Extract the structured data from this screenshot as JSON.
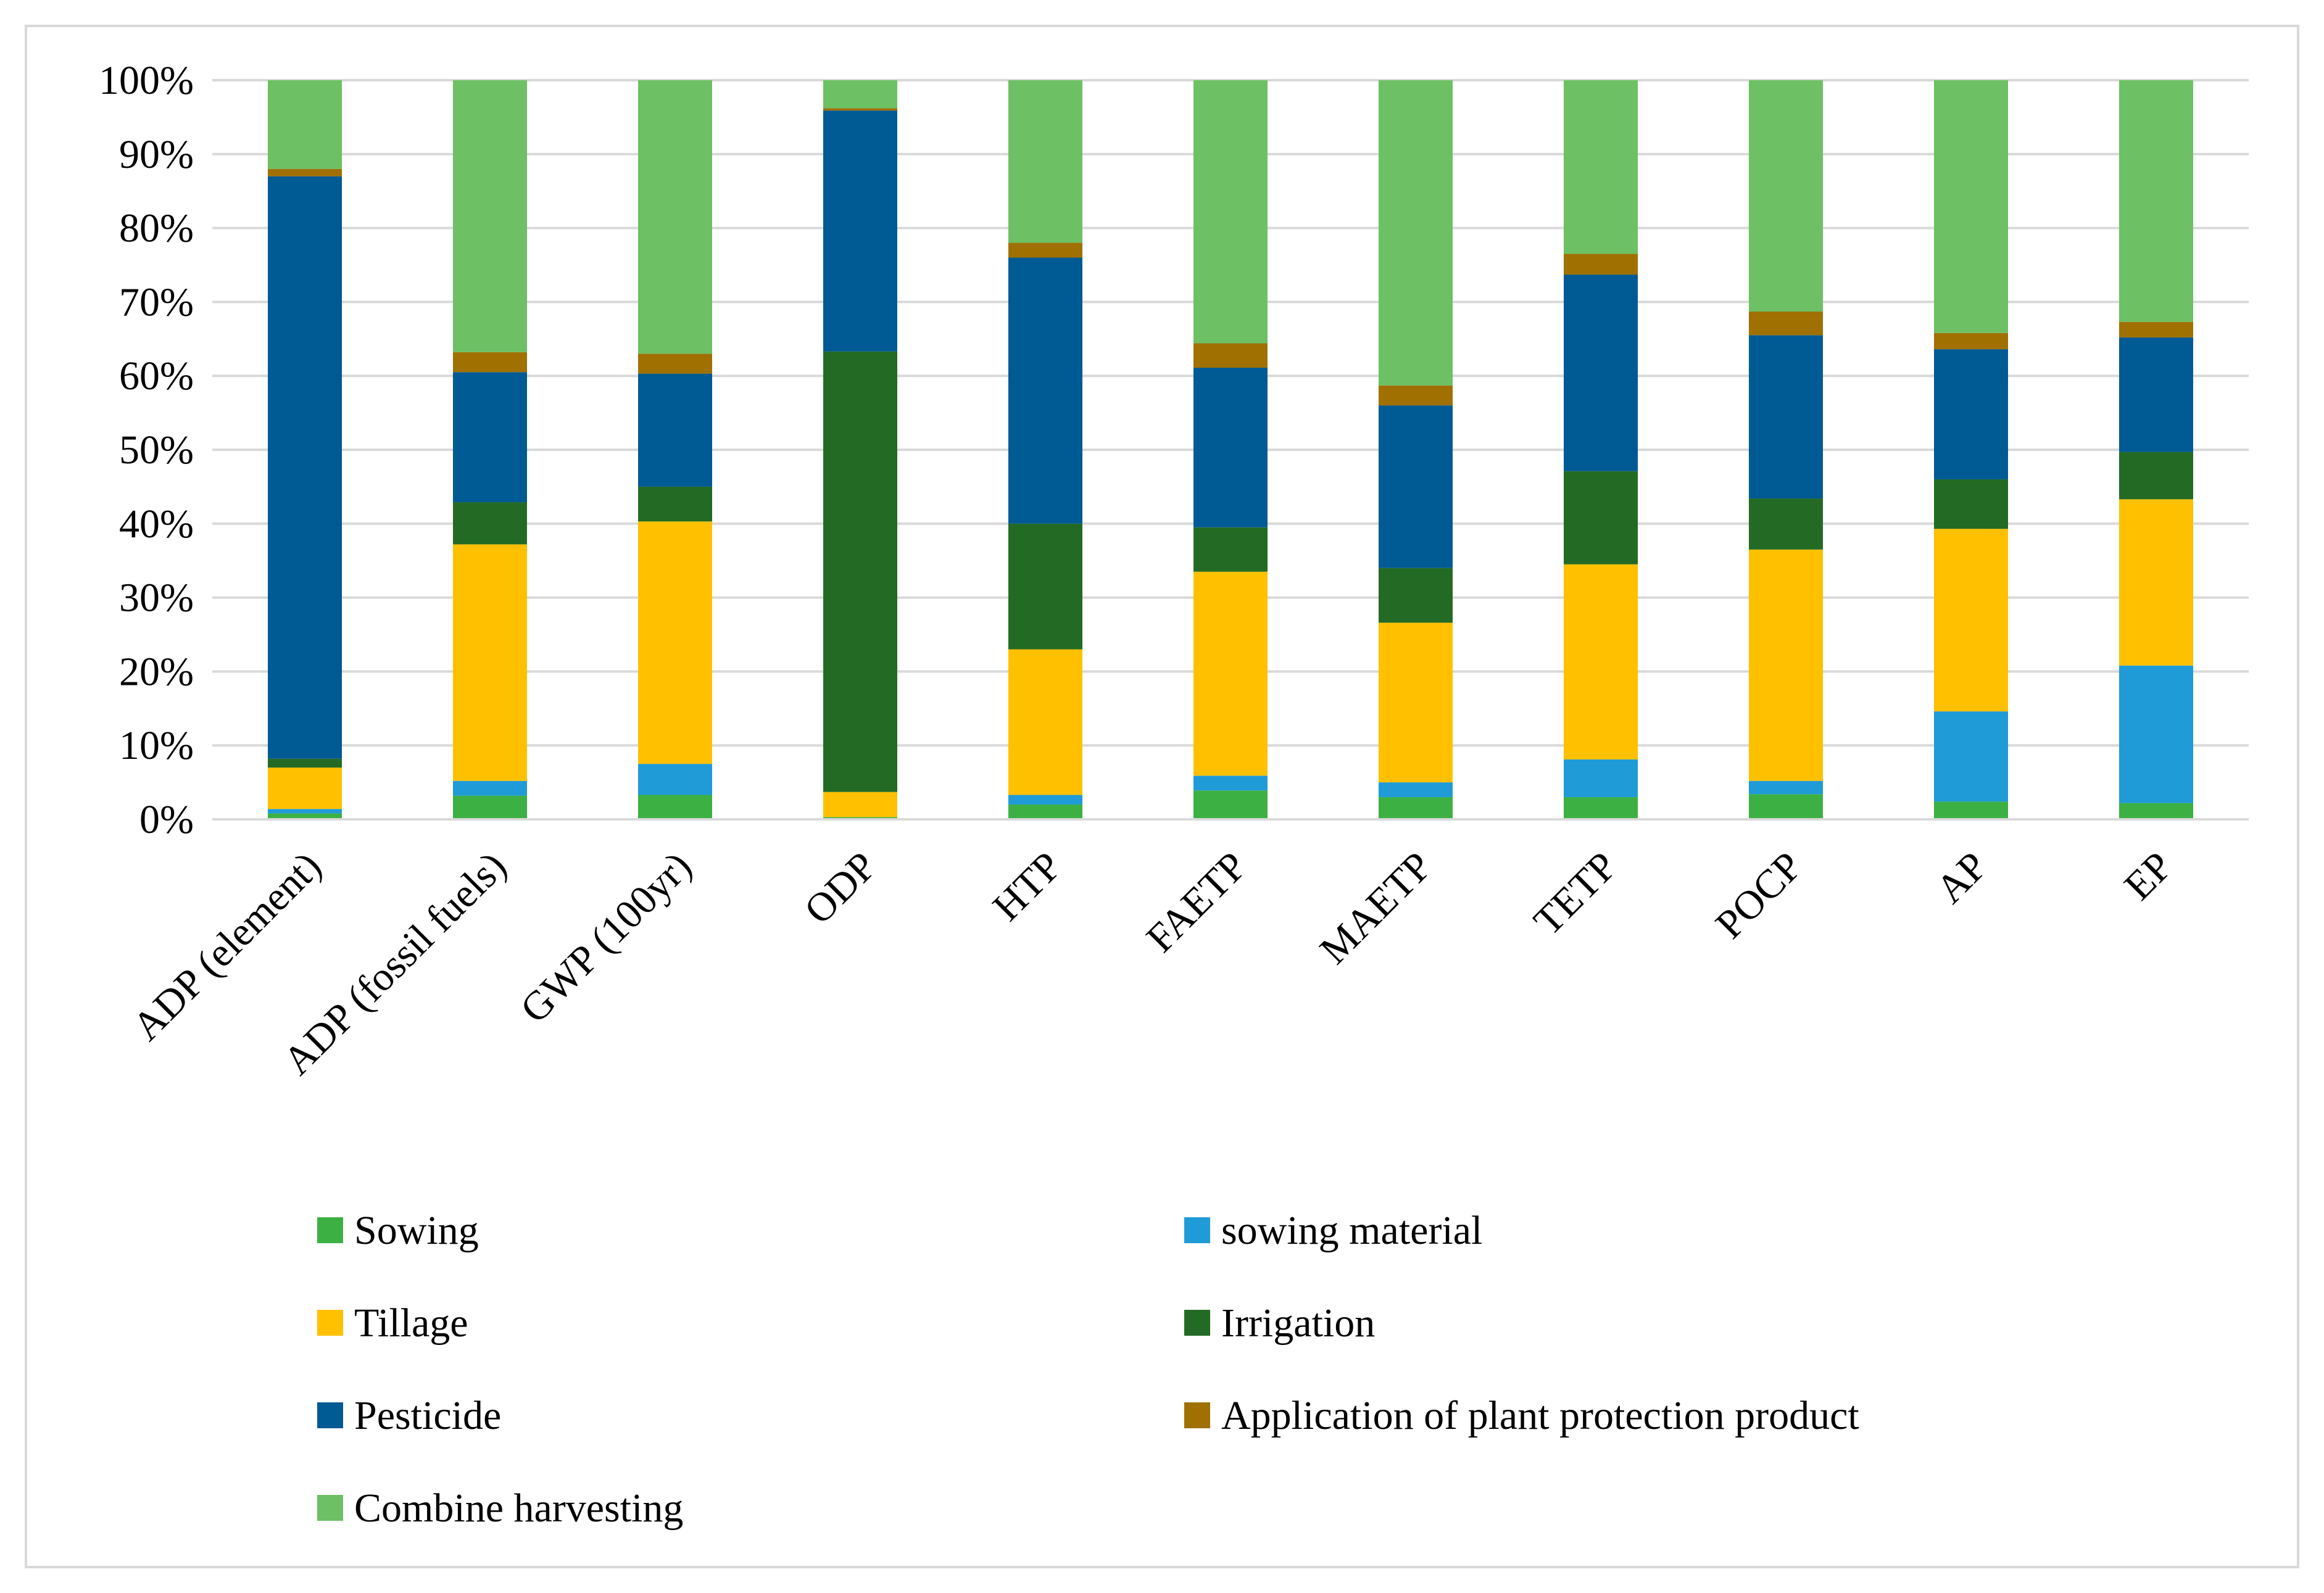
{
  "chart_data": {
    "type": "bar",
    "stacked": true,
    "percent": true,
    "title": "",
    "xlabel": "",
    "ylabel": "",
    "ylim": [
      0,
      100
    ],
    "yticks": [
      "0%",
      "10%",
      "20%",
      "30%",
      "40%",
      "50%",
      "60%",
      "70%",
      "80%",
      "90%",
      "100%"
    ],
    "grid": true,
    "legend_position": "bottom",
    "categories": [
      "ADP (element)",
      "ADP (fossil fuels)",
      "GWP (100yr)",
      "ODP",
      "HTP",
      "FAETP",
      "MAETP",
      "TETP",
      "POCP",
      "AP",
      "EP"
    ],
    "series": [
      {
        "name": "Sowing",
        "color": "#3cb043",
        "values": [
          0.8,
          3.2,
          3.3,
          0.3,
          2.0,
          3.9,
          3.0,
          3.0,
          3.4,
          2.4,
          2.2
        ]
      },
      {
        "name": "sowing material",
        "color": "#1f9bd7",
        "values": [
          0.6,
          2.0,
          4.2,
          0.0,
          1.3,
          2.0,
          2.0,
          5.1,
          1.8,
          12.2,
          18.6
        ]
      },
      {
        "name": "Tillage",
        "color": "#ffc000",
        "values": [
          5.6,
          32.0,
          32.8,
          3.4,
          19.7,
          27.6,
          21.6,
          26.4,
          31.3,
          24.7,
          22.5
        ]
      },
      {
        "name": "Irrigation",
        "color": "#236b24",
        "values": [
          1.2,
          5.7,
          4.7,
          59.6,
          17.0,
          6.0,
          7.4,
          12.6,
          6.9,
          6.7,
          6.4
        ]
      },
      {
        "name": "Pesticide",
        "color": "#005a93",
        "values": [
          78.8,
          17.6,
          15.3,
          32.6,
          36.0,
          21.6,
          22.0,
          26.6,
          22.1,
          17.6,
          15.5
        ]
      },
      {
        "name": "Application of plant protection product",
        "color": "#a07000",
        "values": [
          1.0,
          2.7,
          2.7,
          0.3,
          2.0,
          3.3,
          2.7,
          2.8,
          3.2,
          2.2,
          2.1
        ]
      },
      {
        "name": "Combine harvesting",
        "color": "#6dc063",
        "values": [
          12.0,
          36.8,
          37.0,
          3.8,
          22.0,
          35.6,
          41.3,
          23.5,
          31.3,
          34.2,
          32.7
        ]
      }
    ]
  }
}
